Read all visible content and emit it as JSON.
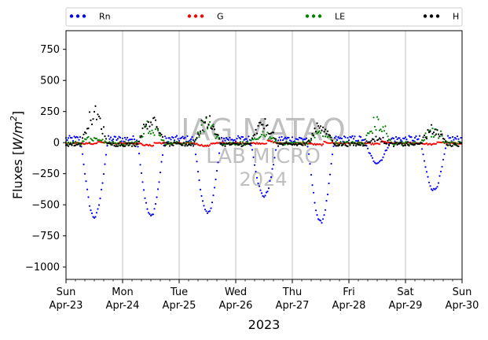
{
  "chart_data": {
    "type": "scatter",
    "xlabel": "2023",
    "ylabel": "Fluxes",
    "ylabel_unit": "W/m",
    "ylabel_exponent": "2",
    "ylim": [
      -1100,
      900
    ],
    "yticks": [
      750,
      500,
      250,
      0,
      -250,
      -500,
      -750,
      -1000
    ],
    "ytick_labels": [
      "750",
      "500",
      "250",
      "0",
      "−250",
      "−500",
      "−750",
      "−1000"
    ],
    "xlim": [
      "2023-04-23",
      "2023-04-30"
    ],
    "xticks": [
      {
        "day": "Sun",
        "date": "Apr-23"
      },
      {
        "day": "Mon",
        "date": "Apr-24"
      },
      {
        "day": "Tue",
        "date": "Apr-25"
      },
      {
        "day": "Wed",
        "date": "Apr-26"
      },
      {
        "day": "Thu",
        "date": "Apr-27"
      },
      {
        "day": "Fri",
        "date": "Apr-28"
      },
      {
        "day": "Sat",
        "date": "Apr-29"
      },
      {
        "day": "Sun",
        "date": "Apr-30"
      }
    ],
    "grid": "vertical",
    "legend_position": "top",
    "watermark": [
      "IAG MATAO",
      "LAB MICRO",
      "2024"
    ],
    "series": [
      {
        "name": "Rn",
        "color": "#0000ff",
        "daily_min": [
          -600,
          -590,
          -570,
          -430,
          -640,
          -160,
          -380
        ],
        "night_value": 30
      },
      {
        "name": "G",
        "color": "#ff0000",
        "daily_min": [
          -5,
          -30,
          -35,
          0,
          -20,
          -10,
          -15
        ],
        "night_value": -5
      },
      {
        "name": "LE",
        "color": "#008000",
        "daily_max": [
          60,
          200,
          210,
          90,
          120,
          230,
          130
        ],
        "night_value": -5
      },
      {
        "name": "H",
        "color": "#000000",
        "daily_max": [
          310,
          270,
          255,
          220,
          200,
          60,
          155
        ],
        "night_value": -15
      }
    ]
  }
}
